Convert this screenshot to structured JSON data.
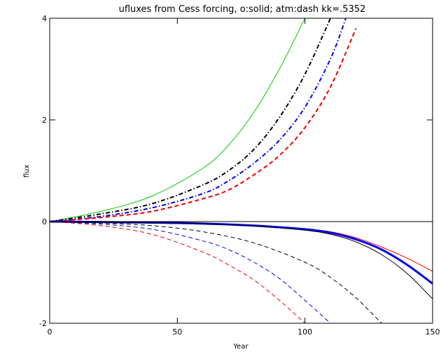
{
  "chart_data": {
    "type": "line",
    "title": "ufluxes from Cess forcing, o:solid; atm:dash kk=.5352",
    "xlabel": "Year",
    "ylabel": "flux",
    "xlim": [
      0,
      150
    ],
    "ylim": [
      -2,
      4
    ],
    "xticks": [
      "0",
      "50",
      "100",
      "150"
    ],
    "yticks": [
      "-2",
      "0",
      "2",
      "4"
    ],
    "zero_line": true,
    "series": [
      {
        "color": "#00cc00",
        "style": "solid",
        "width": 1,
        "x": [
          0,
          20,
          40,
          60,
          70,
          80,
          90,
          100
        ],
        "y": [
          0,
          0.2,
          0.5,
          1.05,
          1.5,
          2.15,
          3.0,
          4.0
        ]
      },
      {
        "color": "#000000",
        "style": "dashdot",
        "width": 2,
        "x": [
          0,
          20,
          40,
          60,
          70,
          80,
          90,
          100,
          110
        ],
        "y": [
          0,
          0.15,
          0.35,
          0.72,
          1.0,
          1.42,
          2.05,
          2.9,
          4.0
        ]
      },
      {
        "color": "#0000ee",
        "style": "dashdot",
        "width": 2,
        "x": [
          0,
          20,
          40,
          60,
          70,
          80,
          90,
          100,
          110,
          116
        ],
        "y": [
          0,
          0.1,
          0.27,
          0.55,
          0.8,
          1.15,
          1.6,
          2.25,
          3.2,
          4.0
        ]
      },
      {
        "color": "#ee0000",
        "style": "dashed",
        "width": 2,
        "x": [
          0,
          20,
          40,
          60,
          70,
          80,
          90,
          100,
          110,
          120
        ],
        "y": [
          0,
          0.08,
          0.2,
          0.45,
          0.62,
          0.92,
          1.3,
          1.85,
          2.65,
          3.8
        ]
      },
      {
        "color": "#ee0000",
        "style": "solid",
        "width": 1,
        "x": [
          0,
          40,
          60,
          80,
          100,
          110,
          120,
          130,
          140,
          150
        ],
        "y": [
          0,
          -0.02,
          -0.04,
          -0.08,
          -0.15,
          -0.2,
          -0.32,
          -0.5,
          -0.72,
          -0.98
        ]
      },
      {
        "color": "#0000ee",
        "style": "solid",
        "width": 3,
        "x": [
          0,
          40,
          60,
          80,
          100,
          110,
          120,
          130,
          140,
          150
        ],
        "y": [
          0,
          -0.02,
          -0.04,
          -0.08,
          -0.15,
          -0.22,
          -0.35,
          -0.55,
          -0.85,
          -1.22
        ]
      },
      {
        "color": "#000000",
        "style": "solid",
        "width": 1,
        "x": [
          0,
          40,
          60,
          80,
          100,
          110,
          120,
          130,
          140,
          150
        ],
        "y": [
          0,
          -0.02,
          -0.04,
          -0.09,
          -0.17,
          -0.25,
          -0.4,
          -0.65,
          -1.02,
          -1.52
        ]
      },
      {
        "color": "#000000",
        "style": "dashed",
        "width": 1,
        "x": [
          0,
          20,
          40,
          60,
          80,
          100,
          110,
          120,
          130
        ],
        "y": [
          0,
          -0.03,
          -0.08,
          -0.2,
          -0.42,
          -0.8,
          -1.1,
          -1.5,
          -2.0
        ]
      },
      {
        "color": "#0000ee",
        "style": "dashed",
        "width": 1,
        "x": [
          0,
          20,
          40,
          60,
          70,
          80,
          90,
          100,
          110
        ],
        "y": [
          0,
          -0.05,
          -0.15,
          -0.38,
          -0.55,
          -0.8,
          -1.12,
          -1.55,
          -2.0
        ]
      },
      {
        "color": "#ee0000",
        "style": "dashed",
        "width": 1,
        "x": [
          0,
          20,
          40,
          60,
          70,
          80,
          90,
          100
        ],
        "y": [
          0,
          -0.08,
          -0.25,
          -0.6,
          -0.85,
          -1.15,
          -1.55,
          -2.0
        ]
      }
    ]
  }
}
